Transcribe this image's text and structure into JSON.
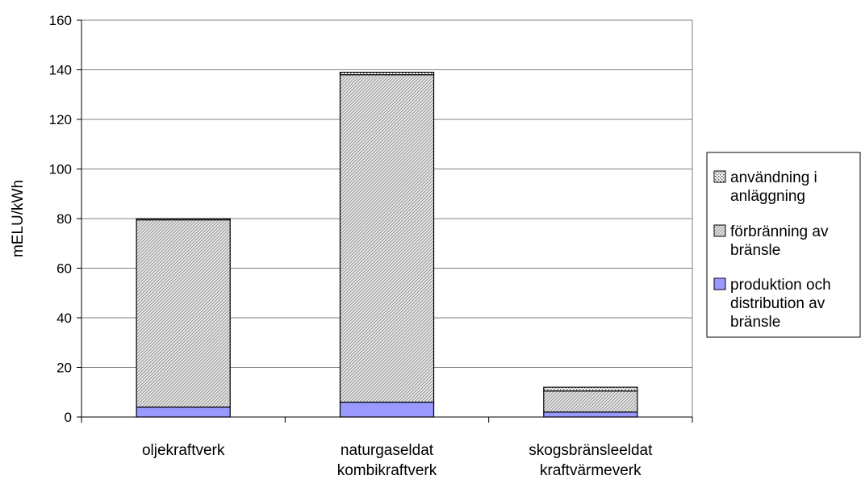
{
  "chart_data": {
    "type": "bar",
    "stacked": true,
    "xlabel": "",
    "ylabel": "mELU/kWh",
    "ylim": [
      0,
      160
    ],
    "yticks": [
      0,
      20,
      40,
      60,
      80,
      100,
      120,
      140,
      160
    ],
    "grid": true,
    "legend_position": "right",
    "categories": [
      [
        "oljekraftverk"
      ],
      [
        "naturgaseldat",
        "kombikraftverk"
      ],
      [
        "skogsbränsleeldat",
        "kraftvärmeverk"
      ]
    ],
    "series": [
      {
        "name": "produktion och distribution av bränsle",
        "legend_lines": [
          "produktion och",
          "distribution av",
          "bränsle"
        ],
        "values": [
          4,
          6,
          2
        ],
        "color": "#9999ff",
        "pattern": "solid"
      },
      {
        "name": "förbränning av bränsle",
        "legend_lines": [
          "förbränning av",
          "bränsle"
        ],
        "values": [
          75.5,
          132,
          8.5
        ],
        "color": "#cccccc",
        "pattern": "diagonal"
      },
      {
        "name": "användning i anläggning",
        "legend_lines": [
          "användning i",
          "anläggning"
        ],
        "values": [
          0.5,
          1,
          1.5
        ],
        "color": "#dddddd",
        "pattern": "dotted"
      }
    ]
  }
}
